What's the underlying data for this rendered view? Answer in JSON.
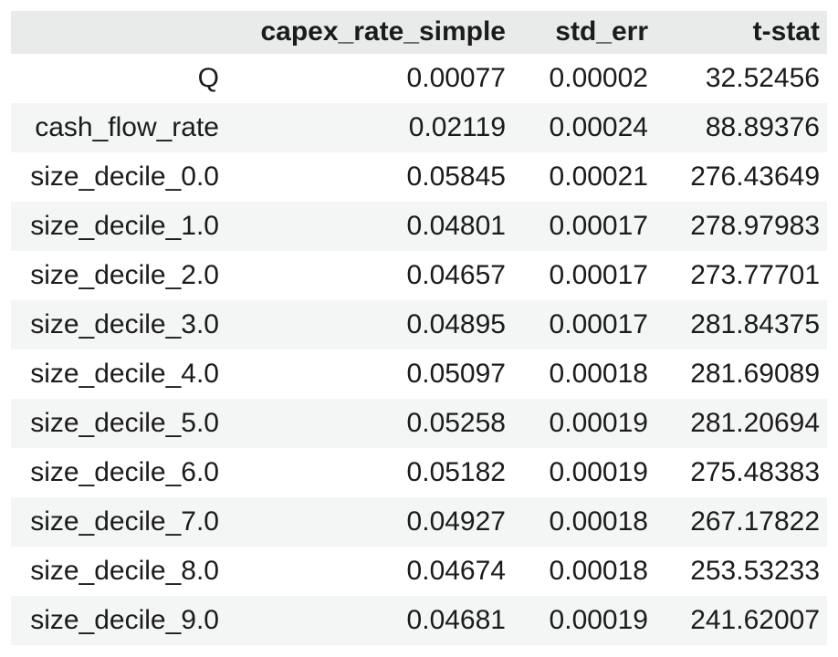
{
  "colors": {
    "header_bg": "#e9eaea",
    "stripe_bg": "#f4f5f5",
    "row_bg": "#ffffff",
    "text": "#1b1b1b",
    "page_bg": "#ffffff"
  },
  "chart_data": {
    "type": "table",
    "title": "",
    "index_label": "",
    "columns": [
      "capex_rate_simple",
      "std_err",
      "t-stat"
    ],
    "layout_hints": {
      "header_background": "#e9eaea",
      "zebra_striping": true,
      "alignment": "right",
      "borders": "none"
    },
    "rows": [
      {
        "label": "Q",
        "values": [
          "0.00077",
          "0.00002",
          "32.52456"
        ]
      },
      {
        "label": "cash_flow_rate",
        "values": [
          "0.02119",
          "0.00024",
          "88.89376"
        ]
      },
      {
        "label": "size_decile_0.0",
        "values": [
          "0.05845",
          "0.00021",
          "276.43649"
        ]
      },
      {
        "label": "size_decile_1.0",
        "values": [
          "0.04801",
          "0.00017",
          "278.97983"
        ]
      },
      {
        "label": "size_decile_2.0",
        "values": [
          "0.04657",
          "0.00017",
          "273.77701"
        ]
      },
      {
        "label": "size_decile_3.0",
        "values": [
          "0.04895",
          "0.00017",
          "281.84375"
        ]
      },
      {
        "label": "size_decile_4.0",
        "values": [
          "0.05097",
          "0.00018",
          "281.69089"
        ]
      },
      {
        "label": "size_decile_5.0",
        "values": [
          "0.05258",
          "0.00019",
          "281.20694"
        ]
      },
      {
        "label": "size_decile_6.0",
        "values": [
          "0.05182",
          "0.00019",
          "275.48383"
        ]
      },
      {
        "label": "size_decile_7.0",
        "values": [
          "0.04927",
          "0.00018",
          "267.17822"
        ]
      },
      {
        "label": "size_decile_8.0",
        "values": [
          "0.04674",
          "0.00018",
          "253.53233"
        ]
      },
      {
        "label": "size_decile_9.0",
        "values": [
          "0.04681",
          "0.00019",
          "241.62007"
        ]
      }
    ]
  }
}
